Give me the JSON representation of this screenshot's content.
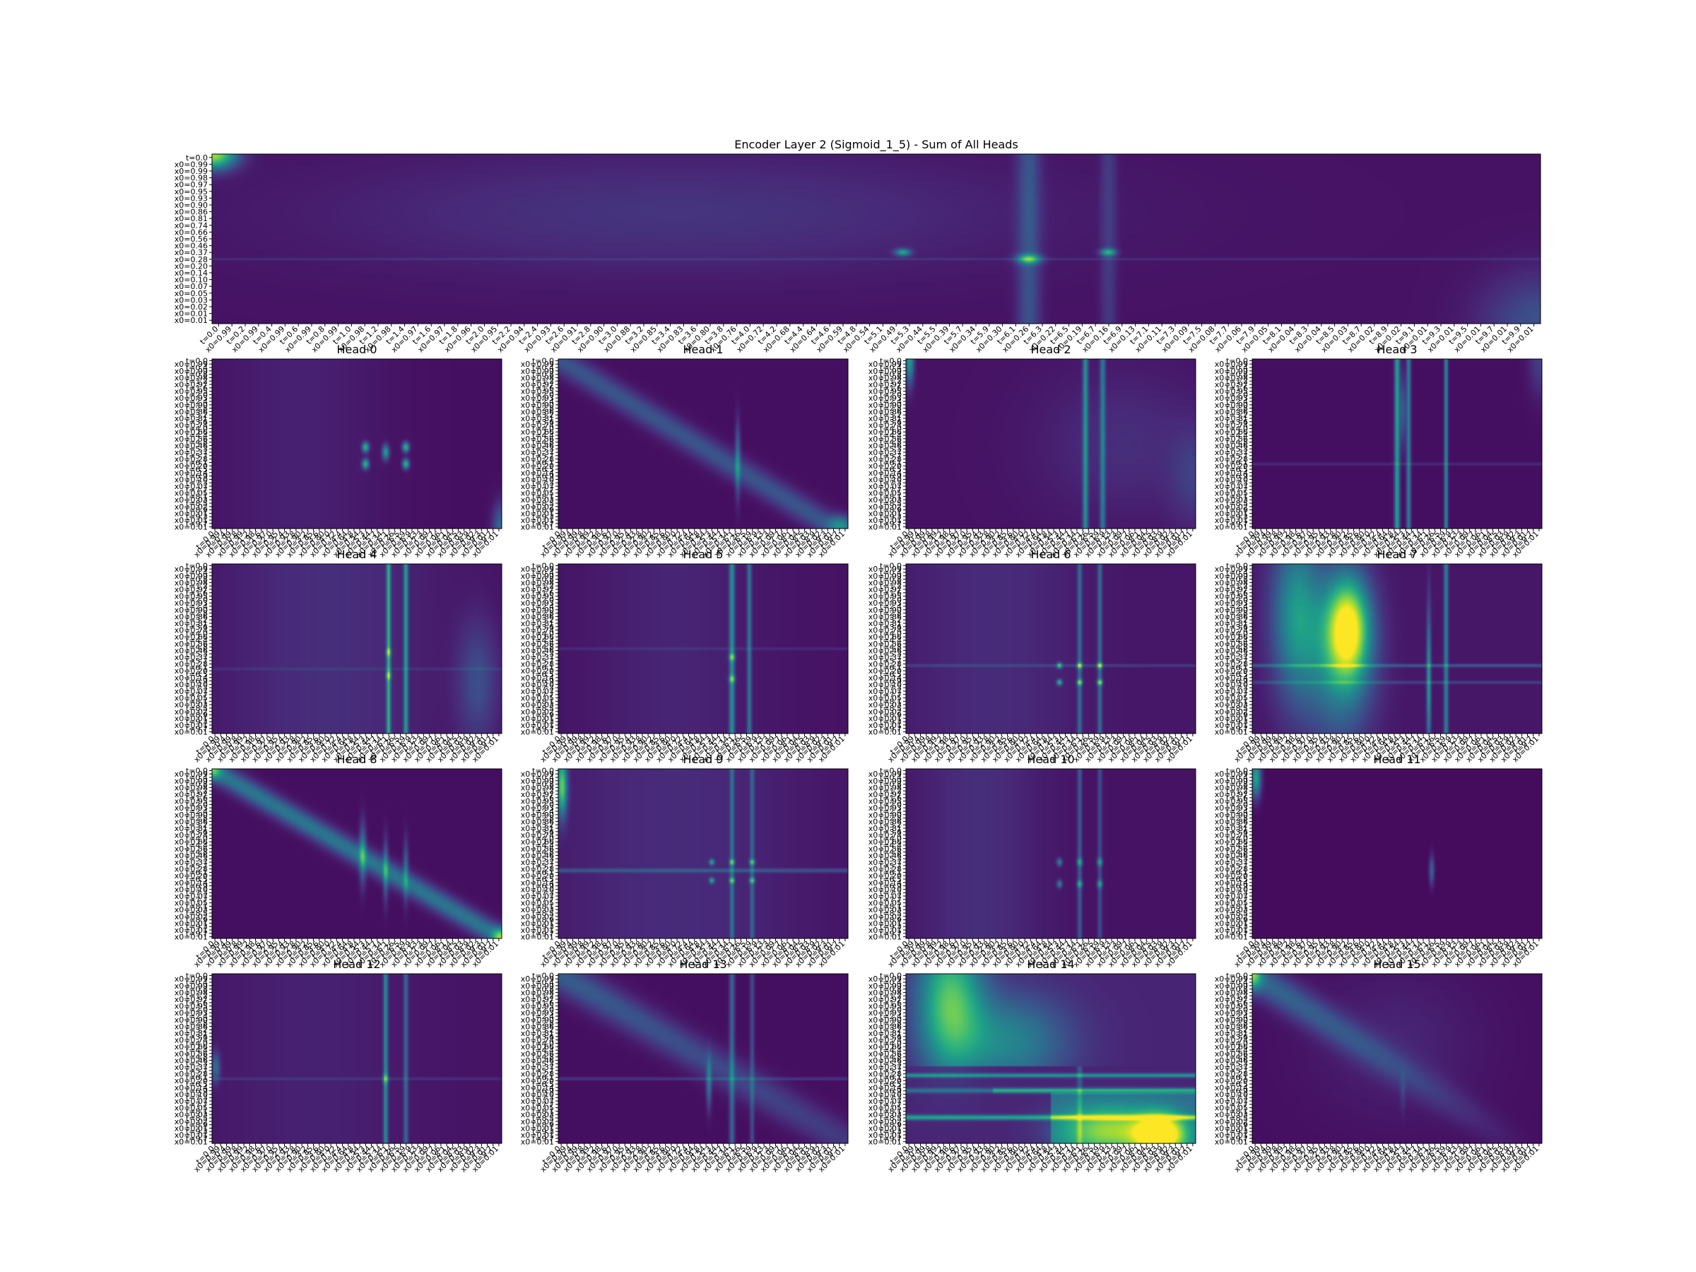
{
  "figure": {
    "main_title": "Encoder Layer 2 (Sigmoid_1_5) - Sum of All Heads"
  },
  "colors": {
    "viridis_dark": "#440154",
    "viridis_mid": "#21918c",
    "viridis_bright": "#fde725"
  },
  "chart_data": [
    {
      "type": "heatmap",
      "title": "Encoder Layer 2 (Sigmoid_1_5) - Sum of All Heads",
      "colormap": "viridis",
      "pattern": "sum",
      "x_tick_labels": [
        "t=0.0",
        "x0=0.99",
        "t=0.2",
        "x0=0.99",
        "t=0.4",
        "x0=0.99",
        "t=0.6",
        "x0=0.99",
        "t=0.8",
        "x0=0.99",
        "t=1.0",
        "x0=0.98",
        "t=1.2",
        "x0=0.98",
        "t=1.4",
        "x0=0.97",
        "t=1.6",
        "x0=0.97",
        "t=1.8",
        "x0=0.96",
        "t=2.0",
        "x0=0.95",
        "t=2.2",
        "x0=0.94",
        "t=2.4",
        "x0=0.93",
        "t=2.6",
        "x0=0.91",
        "t=2.8",
        "x0=0.90",
        "t=3.0",
        "x0=0.88",
        "t=3.2",
        "x0=0.85",
        "t=3.4",
        "x0=0.83",
        "t=3.6",
        "x0=0.80",
        "t=3.8",
        "x0=0.76",
        "t=4.0",
        "x0=0.72",
        "t=4.2",
        "x0=0.68",
        "t=4.4",
        "x0=0.64",
        "t=4.6",
        "x0=0.59",
        "t=4.8",
        "x0=0.54",
        "t=5.1",
        "x0=0.49",
        "t=5.3",
        "x0=0.44",
        "t=5.5",
        "x0=0.39",
        "t=5.7",
        "x0=0.34",
        "t=5.9",
        "x0=0.30",
        "t=6.1",
        "x0=0.26",
        "t=6.3",
        "x0=0.22",
        "t=6.5",
        "x0=0.19",
        "t=6.7",
        "x0=0.16",
        "t=6.9",
        "x0=0.13",
        "t=7.1",
        "x0=0.11",
        "t=7.3",
        "x0=0.09",
        "t=7.5",
        "x0=0.08",
        "t=7.7",
        "x0=0.06",
        "t=7.9",
        "x0=0.05",
        "t=8.1",
        "x0=0.04",
        "t=8.3",
        "x0=0.04",
        "t=8.5",
        "x0=0.03",
        "t=8.7",
        "x0=0.02",
        "t=8.9",
        "x0=0.02",
        "t=9.1",
        "x0=0.01",
        "t=9.3",
        "x0=0.01",
        "t=9.5",
        "x0=0.01",
        "t=9.7",
        "x0=0.01",
        "t=9.9",
        "x0=0.01"
      ],
      "y_tick_labels": [
        "t=0.0",
        "x0=0.99",
        "x0=0.99",
        "x0=0.98",
        "x0=0.97",
        "x0=0.95",
        "x0=0.93",
        "x0=0.90",
        "x0=0.86",
        "x0=0.81",
        "x0=0.74",
        "x0=0.66",
        "x0=0.56",
        "x0=0.46",
        "x0=0.37",
        "x0=0.28",
        "x0=0.20",
        "x0=0.14",
        "x0=0.10",
        "x0=0.07",
        "x0=0.05",
        "x0=0.03",
        "x0=0.02",
        "x0=0.01",
        "x0=0.01"
      ]
    },
    {
      "type": "heatmap",
      "title": "Head 0",
      "colormap": "viridis",
      "pattern": "h0"
    },
    {
      "type": "heatmap",
      "title": "Head 1",
      "colormap": "viridis",
      "pattern": "h1"
    },
    {
      "type": "heatmap",
      "title": "Head 2",
      "colormap": "viridis",
      "pattern": "h2"
    },
    {
      "type": "heatmap",
      "title": "Head 3",
      "colormap": "viridis",
      "pattern": "h3"
    },
    {
      "type": "heatmap",
      "title": "Head 4",
      "colormap": "viridis",
      "pattern": "h4"
    },
    {
      "type": "heatmap",
      "title": "Head 5",
      "colormap": "viridis",
      "pattern": "h5"
    },
    {
      "type": "heatmap",
      "title": "Head 6",
      "colormap": "viridis",
      "pattern": "h6"
    },
    {
      "type": "heatmap",
      "title": "Head 7",
      "colormap": "viridis",
      "pattern": "h7"
    },
    {
      "type": "heatmap",
      "title": "Head 8",
      "colormap": "viridis",
      "pattern": "h8"
    },
    {
      "type": "heatmap",
      "title": "Head 9",
      "colormap": "viridis",
      "pattern": "h9"
    },
    {
      "type": "heatmap",
      "title": "Head 10",
      "colormap": "viridis",
      "pattern": "h10"
    },
    {
      "type": "heatmap",
      "title": "Head 11",
      "colormap": "viridis",
      "pattern": "h11"
    },
    {
      "type": "heatmap",
      "title": "Head 12",
      "colormap": "viridis",
      "pattern": "h12"
    },
    {
      "type": "heatmap",
      "title": "Head 13",
      "colormap": "viridis",
      "pattern": "h13"
    },
    {
      "type": "heatmap",
      "title": "Head 14",
      "colormap": "viridis",
      "pattern": "h14"
    },
    {
      "type": "heatmap",
      "title": "Head 15",
      "colormap": "viridis",
      "pattern": "h15"
    }
  ],
  "small_x_tick_labels": [
    "t=0.0",
    "x0=0.99",
    "t=0.4",
    "x0=0.99",
    "t=0.8",
    "x0=0.99",
    "t=1.2",
    "x0=0.98",
    "t=1.6",
    "x0=0.97",
    "t=2.0",
    "x0=0.95",
    "t=2.4",
    "x0=0.93",
    "t=2.8",
    "x0=0.90",
    "t=3.2",
    "x0=0.85",
    "t=3.6",
    "x0=0.80",
    "t=4.0",
    "x0=0.72",
    "t=4.4",
    "x0=0.64",
    "t=4.8",
    "x0=0.54",
    "t=5.3",
    "x0=0.44",
    "t=5.7",
    "x0=0.34",
    "t=6.1",
    "x0=0.26",
    "t=6.5",
    "x0=0.19",
    "t=6.9",
    "x0=0.13",
    "t=7.3",
    "x0=0.09",
    "t=7.7",
    "x0=0.06",
    "t=8.1",
    "x0=0.04",
    "t=8.5",
    "x0=0.03",
    "t=8.9",
    "x0=0.02",
    "t=9.3",
    "x0=0.01",
    "t=9.7",
    "x0=0.01"
  ],
  "small_y_tick_labels": [
    "t=0.0",
    "x0=0.99",
    "t=0.4",
    "x0=0.99",
    "t=0.8",
    "x0=0.98",
    "t=1.2",
    "x0=0.97",
    "t=1.6",
    "x0=0.95",
    "t=2.0",
    "x0=0.93",
    "t=2.4",
    "x0=0.90",
    "t=2.8",
    "x0=0.86",
    "t=3.2",
    "x0=0.81",
    "t=3.6",
    "x0=0.74",
    "t=4.0",
    "x0=0.66",
    "t=4.4",
    "x0=0.56",
    "t=4.8",
    "x0=0.46",
    "t=5.3",
    "x0=0.37",
    "t=5.7",
    "x0=0.28",
    "t=6.1",
    "x0=0.20",
    "t=6.5",
    "x0=0.14",
    "t=6.9",
    "x0=0.10",
    "t=7.3",
    "x0=0.07",
    "t=7.7",
    "x0=0.05",
    "t=8.1",
    "x0=0.03",
    "t=8.5",
    "x0=0.02",
    "t=8.9",
    "x0=0.01",
    "t=9.3",
    "x0=0.01",
    "t=9.7",
    "x0=0.01"
  ]
}
